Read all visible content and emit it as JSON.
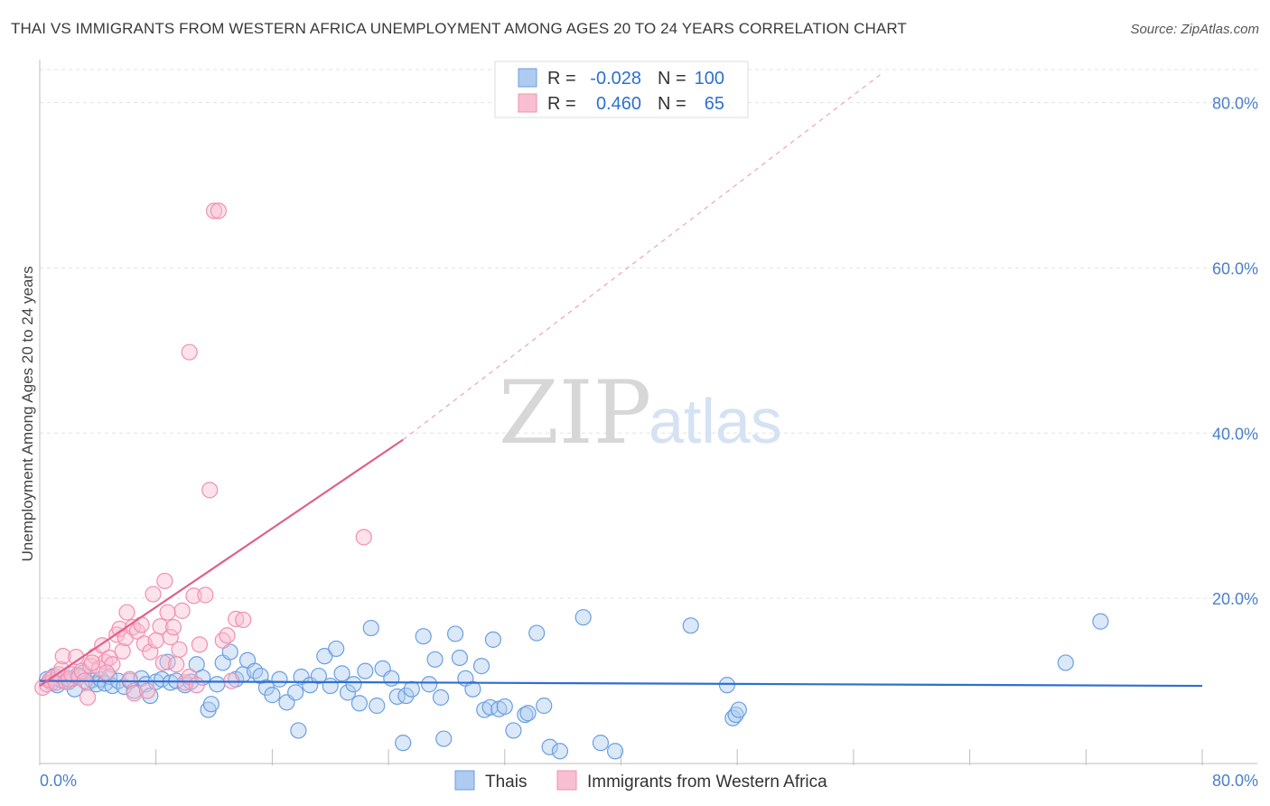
{
  "title": "THAI VS IMMIGRANTS FROM WESTERN AFRICA UNEMPLOYMENT AMONG AGES 20 TO 24 YEARS CORRELATION CHART",
  "source": "Source: ZipAtlas.com",
  "watermark": {
    "zip": "ZIP",
    "atlas": "atlas"
  },
  "chart_data": {
    "type": "scatter",
    "ylabel": "Unemployment Among Ages 20 to 24 years",
    "xlabel": "",
    "xlim": [
      0,
      80
    ],
    "ylim": [
      0,
      84
    ],
    "x_tick_labels": [
      "0.0%",
      "80.0%"
    ],
    "y_ticks": [
      20,
      40,
      60,
      80
    ],
    "y_tick_labels": [
      "20.0%",
      "40.0%",
      "60.0%",
      "80.0%"
    ],
    "legend": {
      "rows": [
        {
          "r_label": "R =",
          "r_value": "-0.028",
          "n_label": "N =",
          "n_value": "100"
        },
        {
          "r_label": "R =",
          "r_value": "0.460",
          "n_label": "N =",
          "n_value": "65"
        }
      ]
    },
    "series": [
      {
        "name": "Thais",
        "color": "#6b9fe0",
        "fill": "#aecbf0",
        "trend": {
          "x0": 0,
          "y0": 10.0,
          "x1": 80,
          "y1": 9.4,
          "style": "solid",
          "line_color": "#2f6fd0"
        },
        "points": [
          [
            0.5,
            10.2
          ],
          [
            0.8,
            9.8
          ],
          [
            1.0,
            10.6
          ],
          [
            1.2,
            9.5
          ],
          [
            1.5,
            10.1
          ],
          [
            1.7,
            10.4
          ],
          [
            2.0,
            9.9
          ],
          [
            2.3,
            10.3
          ],
          [
            2.6,
            10.7
          ],
          [
            2.4,
            9.0
          ],
          [
            3.0,
            11.0
          ],
          [
            3.3,
            9.8
          ],
          [
            3.6,
            10.1
          ],
          [
            3.9,
            9.6
          ],
          [
            4.2,
            10.2
          ],
          [
            4.5,
            9.7
          ],
          [
            4.8,
            10.5
          ],
          [
            5.0,
            9.4
          ],
          [
            5.4,
            10.0
          ],
          [
            5.8,
            9.3
          ],
          [
            6.2,
            10.0
          ],
          [
            6.5,
            8.8
          ],
          [
            7.0,
            10.3
          ],
          [
            7.3,
            9.6
          ],
          [
            7.6,
            8.2
          ],
          [
            8.0,
            9.9
          ],
          [
            8.4,
            10.2
          ],
          [
            8.8,
            12.3
          ],
          [
            9.0,
            9.8
          ],
          [
            9.4,
            10.0
          ],
          [
            10.0,
            9.5
          ],
          [
            10.4,
            9.9
          ],
          [
            10.8,
            12.0
          ],
          [
            11.2,
            10.4
          ],
          [
            11.6,
            6.5
          ],
          [
            11.8,
            7.2
          ],
          [
            12.2,
            9.6
          ],
          [
            12.6,
            12.2
          ],
          [
            13.1,
            13.5
          ],
          [
            13.5,
            10.2
          ],
          [
            14.0,
            10.8
          ],
          [
            14.3,
            12.5
          ],
          [
            14.8,
            11.2
          ],
          [
            15.2,
            10.6
          ],
          [
            15.6,
            9.2
          ],
          [
            16.0,
            8.3
          ],
          [
            16.5,
            10.2
          ],
          [
            17.0,
            7.4
          ],
          [
            17.6,
            8.6
          ],
          [
            18.0,
            10.5
          ],
          [
            17.8,
            4.0
          ],
          [
            18.6,
            9.5
          ],
          [
            19.2,
            10.6
          ],
          [
            19.6,
            13.0
          ],
          [
            20.0,
            9.4
          ],
          [
            20.4,
            13.9
          ],
          [
            20.8,
            10.9
          ],
          [
            21.2,
            8.6
          ],
          [
            21.6,
            9.6
          ],
          [
            22.0,
            7.3
          ],
          [
            22.4,
            11.2
          ],
          [
            22.8,
            16.4
          ],
          [
            23.2,
            7.0
          ],
          [
            23.6,
            11.5
          ],
          [
            24.2,
            10.3
          ],
          [
            24.6,
            8.1
          ],
          [
            25.2,
            8.2
          ],
          [
            25.6,
            9.0
          ],
          [
            25.0,
            2.5
          ],
          [
            26.4,
            15.4
          ],
          [
            26.8,
            9.6
          ],
          [
            27.2,
            12.6
          ],
          [
            27.6,
            8.0
          ],
          [
            27.8,
            3.0
          ],
          [
            28.6,
            15.7
          ],
          [
            28.9,
            12.8
          ],
          [
            29.3,
            10.3
          ],
          [
            29.8,
            9.0
          ],
          [
            30.4,
            11.8
          ],
          [
            30.6,
            6.5
          ],
          [
            31.0,
            6.8
          ],
          [
            31.2,
            15.0
          ],
          [
            31.6,
            6.6
          ],
          [
            32.0,
            6.9
          ],
          [
            32.6,
            4.0
          ],
          [
            33.4,
            5.9
          ],
          [
            33.6,
            6.1
          ],
          [
            34.2,
            15.8
          ],
          [
            34.7,
            7.0
          ],
          [
            35.1,
            2.0
          ],
          [
            35.8,
            1.5
          ],
          [
            37.4,
            17.7
          ],
          [
            38.6,
            2.5
          ],
          [
            39.6,
            1.5
          ],
          [
            44.8,
            16.7
          ],
          [
            47.3,
            9.5
          ],
          [
            47.7,
            5.5
          ],
          [
            47.9,
            5.9
          ],
          [
            48.1,
            6.5
          ],
          [
            70.6,
            12.2
          ],
          [
            73.0,
            17.2
          ]
        ]
      },
      {
        "name": "Immigrants from Western Africa",
        "color": "#f090b0",
        "fill": "#f8bfd2",
        "trend": {
          "x0": 0,
          "y0": 9.4,
          "x1": 25.0,
          "y1": 39.2,
          "dash_to_x": 58,
          "dash_to_y": 83.6,
          "style": "solid+dashed",
          "line_color": "#e0608a"
        },
        "points": [
          [
            0.2,
            9.2
          ],
          [
            0.5,
            9.6
          ],
          [
            0.7,
            10.1
          ],
          [
            0.9,
            10.4
          ],
          [
            1.1,
            9.8
          ],
          [
            1.3,
            10.8
          ],
          [
            1.5,
            11.4
          ],
          [
            1.6,
            13.0
          ],
          [
            1.8,
            9.9
          ],
          [
            2.0,
            10.2
          ],
          [
            2.2,
            10.8
          ],
          [
            2.5,
            12.9
          ],
          [
            2.7,
            10.5
          ],
          [
            2.9,
            11.2
          ],
          [
            3.1,
            10.0
          ],
          [
            3.3,
            8.0
          ],
          [
            3.5,
            11.8
          ],
          [
            3.8,
            13.0
          ],
          [
            4.1,
            11.5
          ],
          [
            4.3,
            14.3
          ],
          [
            4.5,
            12.3
          ],
          [
            4.8,
            12.8
          ],
          [
            5.0,
            12.0
          ],
          [
            5.3,
            15.6
          ],
          [
            5.5,
            16.3
          ],
          [
            5.7,
            13.6
          ],
          [
            5.9,
            15.2
          ],
          [
            6.0,
            18.3
          ],
          [
            6.2,
            10.2
          ],
          [
            6.4,
            16.5
          ],
          [
            6.5,
            8.5
          ],
          [
            6.7,
            16.0
          ],
          [
            7.0,
            16.8
          ],
          [
            7.2,
            14.5
          ],
          [
            7.4,
            8.8
          ],
          [
            7.6,
            13.5
          ],
          [
            7.8,
            20.5
          ],
          [
            8.0,
            14.9
          ],
          [
            8.3,
            16.6
          ],
          [
            8.5,
            12.2
          ],
          [
            8.6,
            22.1
          ],
          [
            8.8,
            18.3
          ],
          [
            9.0,
            15.3
          ],
          [
            9.2,
            16.5
          ],
          [
            9.4,
            12.0
          ],
          [
            9.6,
            13.8
          ],
          [
            9.8,
            18.5
          ],
          [
            10.0,
            9.8
          ],
          [
            10.3,
            10.5
          ],
          [
            10.6,
            20.3
          ],
          [
            10.8,
            9.5
          ],
          [
            11.0,
            14.4
          ],
          [
            11.4,
            20.4
          ],
          [
            11.7,
            33.1
          ],
          [
            12.0,
            66.9
          ],
          [
            12.3,
            66.9
          ],
          [
            12.6,
            14.9
          ],
          [
            12.9,
            15.5
          ],
          [
            13.2,
            10.0
          ],
          [
            13.5,
            17.5
          ],
          [
            14.0,
            17.4
          ],
          [
            10.3,
            49.8
          ],
          [
            22.3,
            27.4
          ],
          [
            3.6,
            12.2
          ],
          [
            4.6,
            11.0
          ]
        ]
      }
    ],
    "bottom_legend": [
      "Thais",
      "Immigrants from Western Africa"
    ]
  }
}
